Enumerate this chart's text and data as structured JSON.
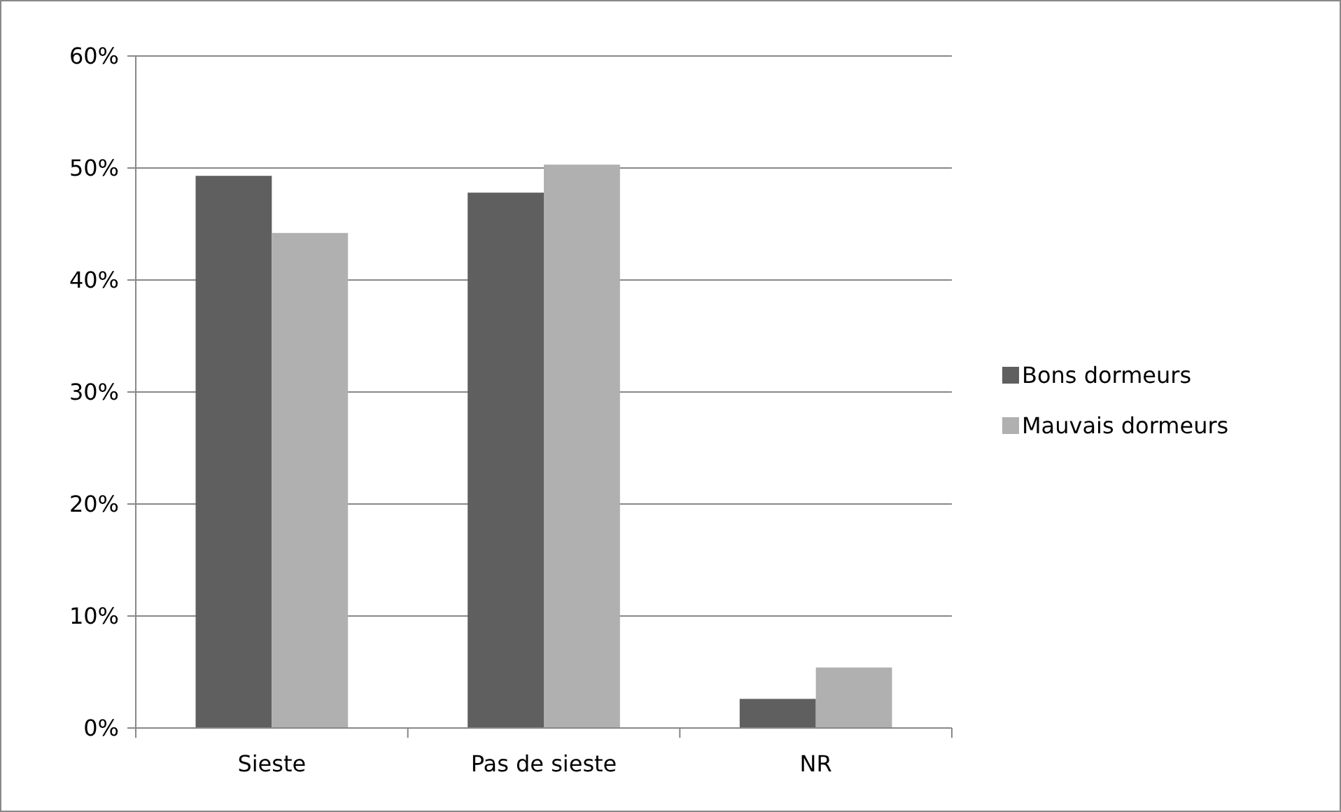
{
  "chart_data": {
    "type": "bar",
    "categories": [
      "Sieste",
      "Pas de sieste",
      "NR"
    ],
    "series": [
      {
        "name": "Bons dormeurs",
        "color": "#5f5f5f",
        "values": [
          49.3,
          47.8,
          2.6
        ]
      },
      {
        "name": "Mauvais dormeurs",
        "color": "#b0b0b0",
        "values": [
          44.2,
          50.3,
          5.4
        ]
      }
    ],
    "ylim": [
      0,
      60
    ],
    "yticks": [
      {
        "value": 0,
        "label": "0%"
      },
      {
        "value": 10,
        "label": "10%"
      },
      {
        "value": 20,
        "label": "20%"
      },
      {
        "value": 30,
        "label": "30%"
      },
      {
        "value": 40,
        "label": "40%"
      },
      {
        "value": 50,
        "label": "50%"
      },
      {
        "value": 60,
        "label": "60%"
      }
    ],
    "grid": "y",
    "legend": "right"
  }
}
